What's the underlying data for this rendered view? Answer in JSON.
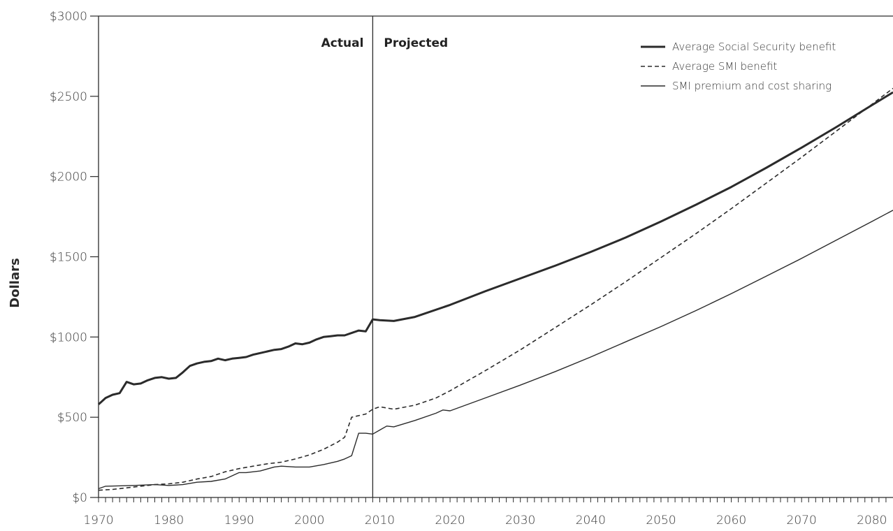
{
  "chart_data": {
    "type": "line",
    "title": "",
    "xlabel": "",
    "ylabel": "Dollars",
    "xlim": [
      1970,
      2083
    ],
    "ylim": [
      0,
      3000
    ],
    "x_ticks": [
      1970,
      1980,
      1990,
      2000,
      2010,
      2020,
      2030,
      2040,
      2050,
      2060,
      2070,
      2080
    ],
    "x_tick_labels": [
      "1970",
      "1980",
      "1990",
      "2000",
      "2010",
      "2020",
      "2030",
      "2040",
      "2050",
      "2060",
      "2070",
      "2080"
    ],
    "y_ticks": [
      0,
      500,
      1000,
      1500,
      2000,
      2500,
      3000
    ],
    "y_tick_labels": [
      "$0",
      "$500",
      "$1000",
      "$1500",
      "$2000",
      "$2500",
      "$3000"
    ],
    "divider": {
      "x": 2009,
      "left_label": "Actual",
      "right_label": "Projected"
    },
    "legend_position": "top-right",
    "grid": false,
    "series": [
      {
        "name": "Average Social Security benefit",
        "style": "thick-solid",
        "color": "#2b2b2b",
        "points": [
          [
            1970,
            580
          ],
          [
            1971,
            620
          ],
          [
            1972,
            640
          ],
          [
            1973,
            650
          ],
          [
            1974,
            720
          ],
          [
            1975,
            705
          ],
          [
            1976,
            710
          ],
          [
            1977,
            730
          ],
          [
            1978,
            745
          ],
          [
            1979,
            750
          ],
          [
            1980,
            740
          ],
          [
            1981,
            745
          ],
          [
            1982,
            780
          ],
          [
            1983,
            820
          ],
          [
            1984,
            835
          ],
          [
            1985,
            845
          ],
          [
            1986,
            850
          ],
          [
            1987,
            865
          ],
          [
            1988,
            855
          ],
          [
            1989,
            865
          ],
          [
            1990,
            870
          ],
          [
            1991,
            875
          ],
          [
            1992,
            890
          ],
          [
            1993,
            900
          ],
          [
            1994,
            910
          ],
          [
            1995,
            920
          ],
          [
            1996,
            925
          ],
          [
            1997,
            940
          ],
          [
            1998,
            960
          ],
          [
            1999,
            955
          ],
          [
            2000,
            965
          ],
          [
            2001,
            985
          ],
          [
            2002,
            1000
          ],
          [
            2003,
            1005
          ],
          [
            2004,
            1010
          ],
          [
            2005,
            1010
          ],
          [
            2006,
            1025
          ],
          [
            2007,
            1040
          ],
          [
            2008,
            1035
          ],
          [
            2009,
            1110
          ],
          [
            2010,
            1105
          ],
          [
            2012,
            1100
          ],
          [
            2015,
            1125
          ],
          [
            2020,
            1200
          ],
          [
            2025,
            1285
          ],
          [
            2030,
            1365
          ],
          [
            2035,
            1445
          ],
          [
            2040,
            1530
          ],
          [
            2045,
            1620
          ],
          [
            2050,
            1720
          ],
          [
            2055,
            1825
          ],
          [
            2060,
            1935
          ],
          [
            2065,
            2055
          ],
          [
            2070,
            2180
          ],
          [
            2075,
            2310
          ],
          [
            2080,
            2445
          ],
          [
            2083,
            2525
          ]
        ]
      },
      {
        "name": "Average SMI benefit",
        "style": "dashed",
        "color": "#2b2b2b",
        "points": [
          [
            1970,
            45
          ],
          [
            1972,
            50
          ],
          [
            1975,
            65
          ],
          [
            1978,
            80
          ],
          [
            1980,
            85
          ],
          [
            1982,
            95
          ],
          [
            1984,
            115
          ],
          [
            1986,
            130
          ],
          [
            1988,
            160
          ],
          [
            1990,
            180
          ],
          [
            1992,
            195
          ],
          [
            1994,
            210
          ],
          [
            1996,
            220
          ],
          [
            1998,
            240
          ],
          [
            2000,
            265
          ],
          [
            2002,
            300
          ],
          [
            2004,
            345
          ],
          [
            2005,
            375
          ],
          [
            2006,
            500
          ],
          [
            2008,
            520
          ],
          [
            2009,
            550
          ],
          [
            2010,
            565
          ],
          [
            2012,
            550
          ],
          [
            2015,
            575
          ],
          [
            2018,
            620
          ],
          [
            2020,
            665
          ],
          [
            2025,
            790
          ],
          [
            2030,
            920
          ],
          [
            2035,
            1060
          ],
          [
            2040,
            1200
          ],
          [
            2045,
            1345
          ],
          [
            2050,
            1495
          ],
          [
            2055,
            1645
          ],
          [
            2060,
            1800
          ],
          [
            2065,
            1960
          ],
          [
            2070,
            2120
          ],
          [
            2075,
            2285
          ],
          [
            2080,
            2450
          ],
          [
            2083,
            2550
          ]
        ]
      },
      {
        "name": "SMI premium and cost sharing",
        "style": "thin-solid",
        "color": "#2b2b2b",
        "points": [
          [
            1970,
            55
          ],
          [
            1971,
            70
          ],
          [
            1975,
            75
          ],
          [
            1978,
            80
          ],
          [
            1980,
            75
          ],
          [
            1982,
            80
          ],
          [
            1984,
            95
          ],
          [
            1986,
            100
          ],
          [
            1988,
            115
          ],
          [
            1990,
            155
          ],
          [
            1991,
            155
          ],
          [
            1993,
            165
          ],
          [
            1995,
            190
          ],
          [
            1996,
            195
          ],
          [
            1998,
            190
          ],
          [
            2000,
            190
          ],
          [
            2002,
            205
          ],
          [
            2004,
            225
          ],
          [
            2005,
            240
          ],
          [
            2006,
            260
          ],
          [
            2007,
            400
          ],
          [
            2008,
            400
          ],
          [
            2009,
            395
          ],
          [
            2010,
            420
          ],
          [
            2011,
            445
          ],
          [
            2012,
            440
          ],
          [
            2015,
            480
          ],
          [
            2018,
            525
          ],
          [
            2019,
            545
          ],
          [
            2020,
            540
          ],
          [
            2025,
            620
          ],
          [
            2030,
            700
          ],
          [
            2035,
            785
          ],
          [
            2040,
            875
          ],
          [
            2045,
            970
          ],
          [
            2050,
            1065
          ],
          [
            2055,
            1165
          ],
          [
            2060,
            1270
          ],
          [
            2065,
            1380
          ],
          [
            2070,
            1490
          ],
          [
            2075,
            1605
          ],
          [
            2080,
            1720
          ],
          [
            2083,
            1790
          ]
        ]
      }
    ]
  }
}
